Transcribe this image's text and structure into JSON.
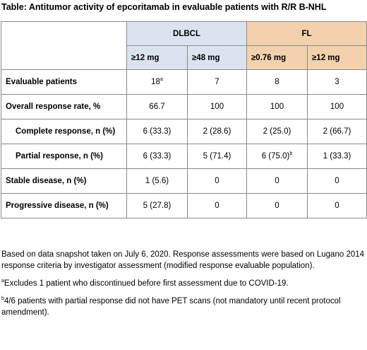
{
  "title": "Table: Antitumor activity of epcoritamab in evaluable patients with R/R B-NHL",
  "groups": [
    "DLBCL",
    "FL"
  ],
  "doses": [
    "≥12 mg",
    "≥48 mg",
    "≥0.76 mg",
    "≥12 mg"
  ],
  "rows": [
    {
      "label": "Evaluable patients",
      "indent": false,
      "cells": [
        "18",
        "7",
        "8",
        "3"
      ],
      "sups": [
        "a",
        "",
        "",
        ""
      ]
    },
    {
      "label": "Overall response rate, %",
      "indent": false,
      "cells": [
        "66.7",
        "100",
        "100",
        "100"
      ],
      "sups": [
        "",
        "",
        "",
        ""
      ]
    },
    {
      "label": "Complete response, n (%)",
      "indent": true,
      "cells": [
        "6 (33.3)",
        "2 (28.6)",
        "2 (25.0)",
        "2 (66.7)"
      ],
      "sups": [
        "",
        "",
        "",
        ""
      ]
    },
    {
      "label": "Partial response, n (%)",
      "indent": true,
      "cells": [
        "6 (33.3)",
        "5 (71.4)",
        "6 (75.0)",
        "1 (33.3)"
      ],
      "sups": [
        "",
        "",
        "b",
        ""
      ]
    },
    {
      "label": "Stable disease, n (%)",
      "indent": false,
      "cells": [
        "1 (5.6)",
        "0",
        "0",
        "0"
      ],
      "sups": [
        "",
        "",
        "",
        ""
      ]
    },
    {
      "label": "Progressive disease, n (%)",
      "indent": false,
      "cells": [
        "5 (27.8)",
        "0",
        "0",
        "0"
      ],
      "sups": [
        "",
        "",
        "",
        ""
      ]
    }
  ],
  "notes": {
    "snapshot": "Based on data snapshot taken on July 6, 2020. Response assessments were based on Lugano 2014 response criteria by investigator assessment (modified response evaluable population).",
    "footnote_a_mark": "a",
    "footnote_a": "Excludes 1 patient who discontinued before first assessment due to COVID-19.",
    "footnote_b_mark": "b",
    "footnote_b": "4/6 patients with partial response did not have PET scans (not mandatory until recent protocol amendment)."
  },
  "colors": {
    "dlbcl_header": "#dce3f0",
    "fl_header": "#f4d1ad",
    "border": "#8a8a8a"
  }
}
